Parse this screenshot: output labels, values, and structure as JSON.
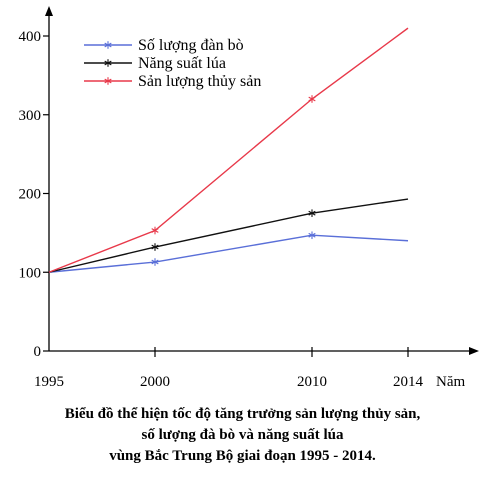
{
  "chart_data": {
    "type": "line",
    "title_lines": [
      "Biểu đồ thể hiện tốc độ tăng trưởng sản lượng thủy sản,",
      "số lượng đà bò và năng suất lúa",
      "vùng Bắc Trung Bộ giai đoạn 1995 - 2014."
    ],
    "xlabel": "Năm",
    "ylabel": "",
    "x": [
      1995,
      2000,
      2010,
      2014
    ],
    "x_tick_labels": [
      "1995",
      "2000",
      "2010",
      "2014"
    ],
    "y_ticks": [
      0,
      100,
      200,
      300,
      400
    ],
    "y_tick_labels": [
      "0",
      "100",
      "200",
      "300",
      "400"
    ],
    "ylim": [
      0,
      420
    ],
    "grid": false,
    "legend_position": "top-left",
    "series": [
      {
        "name": "Số lượng đàn bò",
        "color": "#5a6fd8",
        "values": [
          100,
          113,
          147,
          140
        ]
      },
      {
        "name": "Năng suất lúa",
        "color": "#111111",
        "values": [
          100,
          132,
          175,
          193
        ]
      },
      {
        "name": "Sản lượng thủy sản",
        "color": "#e8394a",
        "values": [
          100,
          153,
          320,
          410
        ]
      }
    ]
  }
}
